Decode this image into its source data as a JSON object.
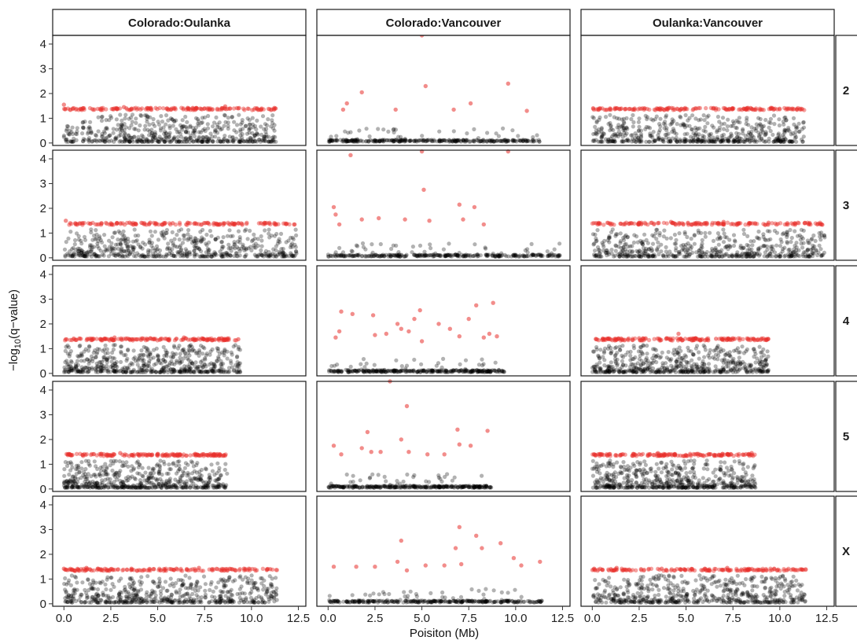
{
  "chart_data": {
    "type": "scatter",
    "facet_columns": [
      "Colorado:Oulanka",
      "Colorado:Vancouver",
      "Oulanka:Vancouver"
    ],
    "facet_rows": [
      "2",
      "3",
      "4",
      "5",
      "X"
    ],
    "xlabel": "Poisiton (Mb)",
    "ylabel_prefix": "−log",
    "ylabel_sub": "10",
    "ylabel_suffix": "(q−value)",
    "xlim": [
      -0.6,
      12.9
    ],
    "ylim": [
      -0.1,
      4.35
    ],
    "x_ticks": [
      0.0,
      2.5,
      5.0,
      7.5,
      10.0,
      12.5
    ],
    "x_tick_labels": [
      "0.0",
      "2.5",
      "5.0",
      "7.5",
      "10.0",
      "12.5"
    ],
    "y_ticks": [
      0,
      1,
      2,
      3,
      4
    ],
    "y_tick_labels": [
      "0",
      "1",
      "2",
      "3",
      "4"
    ],
    "chromosome_length_mb": {
      "2": 11.3,
      "3": 12.4,
      "4": 9.4,
      "5": 8.7,
      "X": 11.4
    },
    "significance_threshold": 1.3,
    "colors": {
      "significant": "#e8302c",
      "non_significant": "#000000"
    },
    "grid": false,
    "point_opacity": 0.35,
    "panels": [
      {
        "row": "2",
        "col": "Colorado:Oulanka",
        "significant": [
          [
            0.0,
            1.55
          ],
          [
            1.0,
            1.4
          ],
          [
            2.0,
            1.4
          ],
          [
            3.2,
            1.45
          ],
          [
            4.5,
            1.4
          ],
          [
            5.5,
            1.4
          ],
          [
            6.6,
            1.42
          ],
          [
            7.5,
            1.4
          ],
          [
            8.6,
            1.48
          ],
          [
            9.3,
            1.4
          ],
          [
            10.3,
            1.38
          ],
          [
            11.2,
            1.35
          ]
        ]
      },
      {
        "row": "2",
        "col": "Colorado:Vancouver",
        "significant": [
          [
            0.8,
            1.35
          ],
          [
            1.0,
            1.6
          ],
          [
            1.8,
            2.05
          ],
          [
            3.6,
            1.35
          ],
          [
            5.2,
            2.3
          ],
          [
            6.7,
            1.35
          ],
          [
            7.6,
            1.6
          ],
          [
            9.6,
            2.4
          ],
          [
            10.6,
            1.3
          ],
          [
            5.0,
            4.35
          ]
        ]
      },
      {
        "row": "2",
        "col": "Oulanka:Vancouver",
        "significant": [
          [
            0.4,
            1.4
          ],
          [
            1.3,
            1.4
          ],
          [
            2.0,
            1.38
          ],
          [
            3.6,
            1.4
          ],
          [
            4.1,
            1.42
          ],
          [
            5.5,
            1.4
          ],
          [
            6.6,
            1.4
          ],
          [
            7.3,
            1.38
          ],
          [
            8.3,
            1.42
          ],
          [
            9.6,
            1.4
          ],
          [
            11.1,
            1.35
          ]
        ]
      },
      {
        "row": "3",
        "col": "Colorado:Oulanka",
        "significant": [
          [
            0.1,
            1.5
          ],
          [
            1.0,
            1.4
          ],
          [
            2.0,
            1.4
          ],
          [
            3.5,
            1.42
          ],
          [
            4.6,
            1.42
          ],
          [
            5.8,
            1.4
          ],
          [
            6.6,
            1.42
          ],
          [
            8.0,
            1.4
          ],
          [
            9.3,
            1.4
          ],
          [
            10.5,
            1.4
          ],
          [
            12.3,
            1.35
          ]
        ]
      },
      {
        "row": "3",
        "col": "Colorado:Vancouver",
        "significant": [
          [
            0.3,
            2.05
          ],
          [
            0.4,
            1.75
          ],
          [
            0.6,
            1.35
          ],
          [
            1.2,
            4.15
          ],
          [
            1.8,
            1.55
          ],
          [
            2.7,
            1.6
          ],
          [
            4.1,
            1.55
          ],
          [
            5.1,
            2.75
          ],
          [
            5.4,
            1.5
          ],
          [
            7.0,
            2.15
          ],
          [
            7.2,
            1.55
          ],
          [
            7.8,
            2.05
          ],
          [
            8.3,
            1.35
          ],
          [
            9.6,
            4.3
          ],
          [
            5.0,
            4.3
          ]
        ]
      },
      {
        "row": "3",
        "col": "Oulanka:Vancouver",
        "significant": [
          [
            0.2,
            1.4
          ],
          [
            1.5,
            1.38
          ],
          [
            2.5,
            1.42
          ],
          [
            3.5,
            1.4
          ],
          [
            4.2,
            1.45
          ],
          [
            5.5,
            1.4
          ],
          [
            7.0,
            1.45
          ],
          [
            8.4,
            1.4
          ],
          [
            9.4,
            1.42
          ],
          [
            10.4,
            1.4
          ],
          [
            12.0,
            1.35
          ]
        ]
      },
      {
        "row": "4",
        "col": "Colorado:Oulanka",
        "significant": [
          [
            0.1,
            1.38
          ],
          [
            1.5,
            1.4
          ],
          [
            2.7,
            1.45
          ],
          [
            3.5,
            1.38
          ],
          [
            4.6,
            1.42
          ],
          [
            5.4,
            1.4
          ],
          [
            6.4,
            1.45
          ],
          [
            7.4,
            1.4
          ],
          [
            8.4,
            1.42
          ],
          [
            9.3,
            1.38
          ]
        ]
      },
      {
        "row": "4",
        "col": "Colorado:Vancouver",
        "significant": [
          [
            0.4,
            1.45
          ],
          [
            0.6,
            1.7
          ],
          [
            0.7,
            2.5
          ],
          [
            1.3,
            2.4
          ],
          [
            2.4,
            2.35
          ],
          [
            2.5,
            1.55
          ],
          [
            3.1,
            1.6
          ],
          [
            3.7,
            2.0
          ],
          [
            3.9,
            1.8
          ],
          [
            4.3,
            1.7
          ],
          [
            4.6,
            2.2
          ],
          [
            4.9,
            2.55
          ],
          [
            5.0,
            1.3
          ],
          [
            5.9,
            2.0
          ],
          [
            6.5,
            1.8
          ],
          [
            7.0,
            1.5
          ],
          [
            7.5,
            2.2
          ],
          [
            7.9,
            2.75
          ],
          [
            8.3,
            1.45
          ],
          [
            8.6,
            1.6
          ],
          [
            8.8,
            2.85
          ],
          [
            9.0,
            1.5
          ]
        ]
      },
      {
        "row": "4",
        "col": "Oulanka:Vancouver",
        "significant": [
          [
            0.2,
            1.38
          ],
          [
            1.4,
            1.4
          ],
          [
            2.5,
            1.42
          ],
          [
            3.6,
            1.38
          ],
          [
            4.6,
            1.6
          ],
          [
            5.5,
            1.42
          ],
          [
            6.6,
            1.4
          ],
          [
            7.5,
            1.42
          ],
          [
            8.6,
            1.4
          ],
          [
            9.3,
            1.35
          ]
        ]
      },
      {
        "row": "5",
        "col": "Colorado:Oulanka",
        "significant": [
          [
            0.2,
            1.4
          ],
          [
            1.0,
            1.38
          ],
          [
            2.0,
            1.42
          ],
          [
            3.0,
            1.45
          ],
          [
            4.1,
            1.4
          ],
          [
            5.0,
            1.42
          ],
          [
            6.2,
            1.4
          ],
          [
            7.0,
            1.42
          ],
          [
            8.0,
            1.38
          ],
          [
            8.6,
            1.35
          ]
        ]
      },
      {
        "row": "5",
        "col": "Colorado:Vancouver",
        "significant": [
          [
            0.3,
            1.75
          ],
          [
            0.7,
            1.4
          ],
          [
            1.8,
            1.65
          ],
          [
            2.1,
            2.3
          ],
          [
            2.3,
            1.5
          ],
          [
            2.8,
            1.5
          ],
          [
            3.3,
            4.35
          ],
          [
            3.9,
            2.0
          ],
          [
            4.2,
            3.35
          ],
          [
            4.3,
            1.5
          ],
          [
            5.3,
            1.4
          ],
          [
            6.2,
            1.4
          ],
          [
            6.9,
            2.4
          ],
          [
            7.0,
            1.8
          ],
          [
            7.6,
            1.75
          ],
          [
            8.5,
            2.35
          ]
        ]
      },
      {
        "row": "5",
        "col": "Oulanka:Vancouver",
        "significant": [
          [
            0.1,
            1.4
          ],
          [
            1.5,
            1.38
          ],
          [
            2.5,
            1.4
          ],
          [
            3.5,
            1.45
          ],
          [
            4.4,
            1.4
          ],
          [
            5.6,
            1.42
          ],
          [
            6.5,
            1.38
          ],
          [
            7.4,
            1.4
          ],
          [
            8.5,
            1.45
          ]
        ]
      },
      {
        "row": "X",
        "col": "Colorado:Oulanka",
        "significant": [
          [
            0.0,
            1.42
          ],
          [
            1.2,
            1.45
          ],
          [
            2.5,
            1.4
          ],
          [
            3.6,
            1.42
          ],
          [
            4.8,
            1.4
          ],
          [
            6.0,
            1.42
          ],
          [
            7.2,
            1.45
          ],
          [
            8.5,
            1.4
          ],
          [
            9.6,
            1.42
          ],
          [
            11.0,
            1.4
          ]
        ]
      },
      {
        "row": "X",
        "col": "Colorado:Vancouver",
        "significant": [
          [
            0.3,
            1.5
          ],
          [
            1.5,
            1.5
          ],
          [
            2.5,
            1.5
          ],
          [
            3.7,
            1.7
          ],
          [
            3.9,
            2.55
          ],
          [
            4.2,
            1.35
          ],
          [
            5.2,
            1.55
          ],
          [
            6.2,
            1.55
          ],
          [
            6.8,
            2.25
          ],
          [
            7.0,
            3.1
          ],
          [
            7.1,
            1.6
          ],
          [
            7.9,
            2.75
          ],
          [
            8.2,
            2.25
          ],
          [
            9.2,
            2.45
          ],
          [
            9.9,
            1.85
          ],
          [
            10.3,
            1.55
          ],
          [
            11.3,
            1.7
          ]
        ]
      },
      {
        "row": "X",
        "col": "Oulanka:Vancouver",
        "significant": [
          [
            0.1,
            1.42
          ],
          [
            1.3,
            1.45
          ],
          [
            2.6,
            1.4
          ],
          [
            3.7,
            1.42
          ],
          [
            4.9,
            1.4
          ],
          [
            6.0,
            1.42
          ],
          [
            7.2,
            1.45
          ],
          [
            8.4,
            1.4
          ],
          [
            9.7,
            1.42
          ],
          [
            11.2,
            1.38
          ]
        ]
      }
    ]
  }
}
